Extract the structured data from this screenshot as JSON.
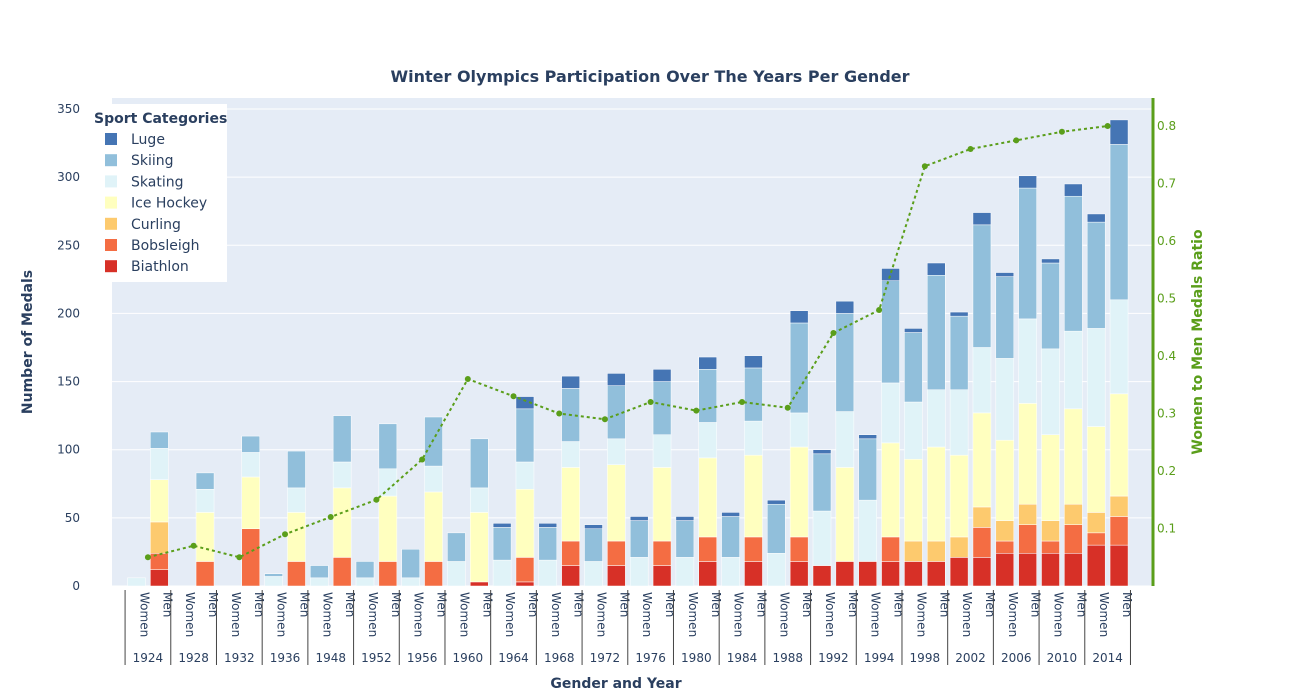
{
  "chart_data": {
    "type": "bar",
    "stacked": true,
    "title": "Winter Olympics Participation Over The Years Per Gender",
    "xlabel": "Gender and Year",
    "ylabel": "Number of Medals",
    "y2label": "Women to Men Medals Ratio",
    "ylim": [
      0,
      350
    ],
    "y2lim": [
      0,
      0.85
    ],
    "yticks": [
      0,
      50,
      100,
      150,
      200,
      250,
      300,
      350
    ],
    "y2ticks": [
      0.1,
      0.2,
      0.3,
      0.4,
      0.5,
      0.6,
      0.7,
      0.8
    ],
    "grid": true,
    "legend": {
      "title": "Sport Categories",
      "placement": "top-left"
    },
    "genders": [
      "Women",
      "Men"
    ],
    "years": [
      "1924",
      "1928",
      "1932",
      "1936",
      "1948",
      "1952",
      "1956",
      "1960",
      "1964",
      "1968",
      "1972",
      "1976",
      "1980",
      "1984",
      "1988",
      "1992",
      "1994",
      "1998",
      "2002",
      "2006",
      "2010",
      "2014"
    ],
    "series": [
      {
        "name": "Biathlon",
        "color": "#d73027",
        "values": [
          0,
          12,
          0,
          0,
          0,
          0,
          0,
          0,
          0,
          0,
          0,
          0,
          0,
          0,
          0,
          3,
          0,
          3,
          0,
          15,
          0,
          15,
          0,
          15,
          0,
          18,
          0,
          18,
          0,
          18,
          15,
          18,
          18,
          18,
          18,
          18,
          21,
          21,
          24,
          24,
          24,
          24,
          30,
          30
        ]
      },
      {
        "name": "Bobsleigh",
        "color": "#f46d43",
        "values": [
          0,
          12,
          0,
          18,
          0,
          42,
          0,
          18,
          0,
          21,
          0,
          18,
          0,
          18,
          0,
          0,
          0,
          18,
          0,
          18,
          0,
          18,
          0,
          18,
          0,
          18,
          0,
          18,
          0,
          18,
          0,
          0,
          0,
          18,
          0,
          0,
          0,
          22,
          9,
          21,
          9,
          21,
          9,
          21,
          0,
          21
        ]
      },
      {
        "name": "Curling",
        "color": "#fdca6e",
        "values": [
          0,
          23,
          0,
          0,
          0,
          0,
          0,
          0,
          0,
          0,
          0,
          0,
          0,
          0,
          0,
          0,
          0,
          0,
          0,
          0,
          0,
          0,
          0,
          0,
          0,
          0,
          0,
          0,
          0,
          0,
          0,
          0,
          0,
          0,
          15,
          15,
          15,
          15,
          15,
          15,
          15,
          15,
          15,
          15
        ]
      },
      {
        "name": "Ice Hockey",
        "color": "#ffffbf",
        "values": [
          0,
          31,
          0,
          36,
          0,
          38,
          0,
          36,
          0,
          51,
          0,
          48,
          0,
          51,
          0,
          51,
          0,
          50,
          0,
          54,
          0,
          56,
          0,
          54,
          0,
          58,
          0,
          60,
          0,
          66,
          0,
          69,
          0,
          69,
          60,
          69,
          60,
          69,
          59,
          74,
          63,
          70,
          63,
          75
        ]
      },
      {
        "name": "Skating",
        "color": "#e0f3f8",
        "values": [
          6,
          23,
          0,
          17,
          0,
          18,
          7,
          18,
          6,
          19,
          6,
          20,
          6,
          19,
          18,
          18,
          19,
          20,
          19,
          19,
          18,
          19,
          21,
          24,
          21,
          26,
          21,
          25,
          24,
          25,
          40,
          41,
          45,
          44,
          42,
          42,
          48,
          48,
          60,
          62,
          63,
          57,
          72,
          69
        ]
      },
      {
        "name": "Skiing",
        "color": "#91bfdb",
        "values": [
          0,
          12,
          0,
          12,
          0,
          12,
          2,
          27,
          9,
          34,
          12,
          33,
          21,
          36,
          21,
          36,
          24,
          39,
          24,
          39,
          24,
          39,
          27,
          39,
          27,
          39,
          30,
          39,
          36,
          66,
          42,
          72,
          45,
          75,
          51,
          84,
          54,
          90,
          60,
          96,
          63,
          99,
          78,
          114
        ]
      },
      {
        "name": "Luge",
        "color": "#4575b4",
        "values": [
          0,
          0,
          0,
          0,
          0,
          0,
          0,
          0,
          0,
          0,
          0,
          0,
          0,
          0,
          0,
          0,
          3,
          9,
          3,
          9,
          3,
          9,
          3,
          9,
          3,
          9,
          3,
          9,
          3,
          9,
          3,
          9,
          3,
          9,
          3,
          9,
          3,
          9,
          3,
          9,
          3,
          9,
          6,
          18
        ]
      }
    ],
    "ratio_series": {
      "name": "Women to Men Medals Ratio",
      "color": "#5a9e1a",
      "values": [
        0.05,
        0.07,
        0.05,
        0.09,
        0.12,
        0.15,
        0.22,
        0.36,
        0.33,
        0.3,
        0.29,
        0.32,
        0.305,
        0.32,
        0.31,
        0.44,
        0.48,
        0.73,
        0.76,
        0.775,
        0.79,
        0.8
      ]
    }
  }
}
